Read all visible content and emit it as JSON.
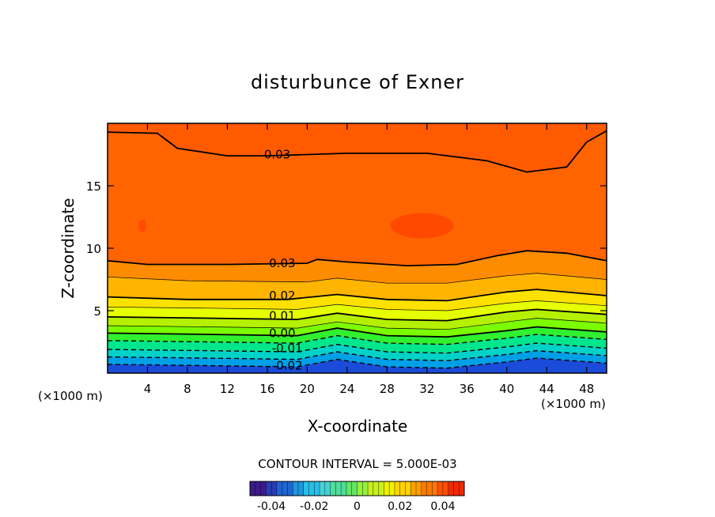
{
  "chart_data": {
    "type": "heatmap",
    "title": "disturbunce of Exner",
    "xlabel": "X-coordinate",
    "ylabel": "Z-coordinate",
    "xlim": [
      0,
      50
    ],
    "ylim": [
      0,
      20
    ],
    "x_ticks": [
      4,
      8,
      12,
      16,
      20,
      24,
      28,
      32,
      36,
      40,
      44,
      48
    ],
    "x_tick_labels": [
      "4",
      "8",
      "12",
      "16",
      "20",
      "24",
      "28",
      "32",
      "36",
      "40",
      "44",
      "48"
    ],
    "y_ticks": [
      5,
      10,
      15
    ],
    "y_tick_labels": [
      "5",
      "10",
      "15"
    ],
    "x_unit_left": "(×1000 m)",
    "x_unit_right": "(×1000 m)",
    "contour_interval_text": "CONTOUR INTERVAL = 5.000E-03",
    "colorbar": {
      "range": [
        -0.05,
        0.05
      ],
      "ticks": [
        -0.04,
        -0.02,
        0,
        0.02,
        0.04
      ],
      "tick_labels": [
        "-0.04",
        "-0.02",
        "0",
        "0.02",
        "0.04"
      ]
    },
    "contour_labels": [
      {
        "text": "0.03",
        "x": 17,
        "z": 17.5
      },
      {
        "text": "0.03",
        "x": 17.5,
        "z": 8.8
      },
      {
        "text": "0.02",
        "x": 17.5,
        "z": 6.2
      },
      {
        "text": "0.01",
        "x": 17.5,
        "z": 4.6
      },
      {
        "text": "0.00",
        "x": 17.5,
        "z": 3.2
      },
      {
        "text": "-0.01",
        "x": 18,
        "z": 2.0
      },
      {
        "text": "-0.02",
        "x": 18,
        "z": 0.6
      }
    ],
    "contour_lines": [
      {
        "value": 0.03,
        "style": "solid",
        "points": [
          [
            0,
            19.3
          ],
          [
            5,
            19.2
          ],
          [
            7,
            18
          ],
          [
            12,
            17.4
          ],
          [
            16,
            17.4
          ],
          [
            24,
            17.6
          ],
          [
            32,
            17.6
          ],
          [
            38,
            17
          ],
          [
            42,
            16.1
          ],
          [
            46,
            16.5
          ],
          [
            48,
            18.5
          ],
          [
            50,
            19.4
          ]
        ]
      },
      {
        "value": 0.03,
        "style": "solid",
        "points": [
          [
            0,
            9.0
          ],
          [
            4,
            8.7
          ],
          [
            12,
            8.7
          ],
          [
            20,
            8.8
          ],
          [
            21,
            9.1
          ],
          [
            24,
            8.9
          ],
          [
            30,
            8.6
          ],
          [
            35,
            8.7
          ],
          [
            39,
            9.4
          ],
          [
            42,
            9.8
          ],
          [
            46,
            9.6
          ],
          [
            50,
            9.0
          ]
        ]
      },
      {
        "value": 0.025,
        "style": "thin",
        "points": [
          [
            0,
            7.7
          ],
          [
            8,
            7.4
          ],
          [
            20,
            7.3
          ],
          [
            23,
            7.6
          ],
          [
            28,
            7.2
          ],
          [
            34,
            7.2
          ],
          [
            40,
            7.8
          ],
          [
            43,
            8.0
          ],
          [
            50,
            7.5
          ]
        ]
      },
      {
        "value": 0.02,
        "style": "solid",
        "points": [
          [
            0,
            6.1
          ],
          [
            8,
            5.9
          ],
          [
            18,
            5.9
          ],
          [
            23,
            6.3
          ],
          [
            28,
            5.9
          ],
          [
            34,
            5.8
          ],
          [
            40,
            6.5
          ],
          [
            43,
            6.7
          ],
          [
            50,
            6.2
          ]
        ]
      },
      {
        "value": 0.015,
        "style": "thin",
        "points": [
          [
            0,
            5.3
          ],
          [
            10,
            5.2
          ],
          [
            19,
            5.1
          ],
          [
            23,
            5.5
          ],
          [
            28,
            5.1
          ],
          [
            34,
            5.0
          ],
          [
            40,
            5.6
          ],
          [
            43,
            5.8
          ],
          [
            50,
            5.4
          ]
        ]
      },
      {
        "value": 0.01,
        "style": "solid",
        "points": [
          [
            0,
            4.5
          ],
          [
            10,
            4.4
          ],
          [
            19,
            4.3
          ],
          [
            23,
            4.8
          ],
          [
            28,
            4.3
          ],
          [
            34,
            4.2
          ],
          [
            40,
            4.9
          ],
          [
            43,
            5.1
          ],
          [
            50,
            4.7
          ]
        ]
      },
      {
        "value": 0.005,
        "style": "thin",
        "points": [
          [
            0,
            3.8
          ],
          [
            10,
            3.7
          ],
          [
            19,
            3.6
          ],
          [
            23,
            4.1
          ],
          [
            28,
            3.6
          ],
          [
            34,
            3.5
          ],
          [
            40,
            4.1
          ],
          [
            43,
            4.4
          ],
          [
            50,
            4.0
          ]
        ]
      },
      {
        "value": 0.0,
        "style": "solid",
        "points": [
          [
            0,
            3.2
          ],
          [
            10,
            3.1
          ],
          [
            19,
            3.0
          ],
          [
            23,
            3.6
          ],
          [
            28,
            3.0
          ],
          [
            34,
            2.9
          ],
          [
            40,
            3.4
          ],
          [
            43,
            3.7
          ],
          [
            50,
            3.3
          ]
        ]
      },
      {
        "value": -0.005,
        "style": "dashed",
        "points": [
          [
            0,
            2.6
          ],
          [
            10,
            2.5
          ],
          [
            19,
            2.4
          ],
          [
            23,
            3.0
          ],
          [
            28,
            2.4
          ],
          [
            34,
            2.3
          ],
          [
            40,
            2.8
          ],
          [
            43,
            3.1
          ],
          [
            50,
            2.7
          ]
        ]
      },
      {
        "value": -0.01,
        "style": "dashed",
        "points": [
          [
            0,
            1.9
          ],
          [
            10,
            1.8
          ],
          [
            19,
            1.7
          ],
          [
            23,
            2.3
          ],
          [
            28,
            1.7
          ],
          [
            34,
            1.6
          ],
          [
            40,
            2.1
          ],
          [
            43,
            2.4
          ],
          [
            50,
            2.0
          ]
        ]
      },
      {
        "value": -0.015,
        "style": "dashed",
        "points": [
          [
            0,
            1.3
          ],
          [
            10,
            1.2
          ],
          [
            19,
            1.1
          ],
          [
            23,
            1.7
          ],
          [
            28,
            1.1
          ],
          [
            34,
            1.0
          ],
          [
            40,
            1.5
          ],
          [
            43,
            1.8
          ],
          [
            50,
            1.4
          ]
        ]
      },
      {
        "value": -0.02,
        "style": "dashed",
        "points": [
          [
            0,
            0.7
          ],
          [
            10,
            0.6
          ],
          [
            19,
            0.5
          ],
          [
            23,
            1.1
          ],
          [
            28,
            0.5
          ],
          [
            34,
            0.4
          ],
          [
            40,
            0.9
          ],
          [
            43,
            1.2
          ],
          [
            50,
            0.8
          ]
        ]
      }
    ],
    "grid": false,
    "legend": "colorbar bottom-center"
  },
  "colors": {
    "bands": [
      "#1a4cd9",
      "#00a0e6",
      "#00d2c8",
      "#00e68c",
      "#30f030",
      "#7cfc00",
      "#b4f000",
      "#e6ff00",
      "#ffe100",
      "#ffb400",
      "#ff8c00",
      "#ff6400",
      "#ff5a00",
      "#ff4600"
    ],
    "colorbar": [
      "#3c1a8c",
      "#2a3cb4",
      "#1e64d2",
      "#1e96dc",
      "#28bee6",
      "#46d2d2",
      "#50dc9a",
      "#64e664",
      "#96f03c",
      "#c8f01e",
      "#f0f000",
      "#ffd200",
      "#ffa000",
      "#ff7800",
      "#ff5000",
      "#f02800"
    ]
  }
}
